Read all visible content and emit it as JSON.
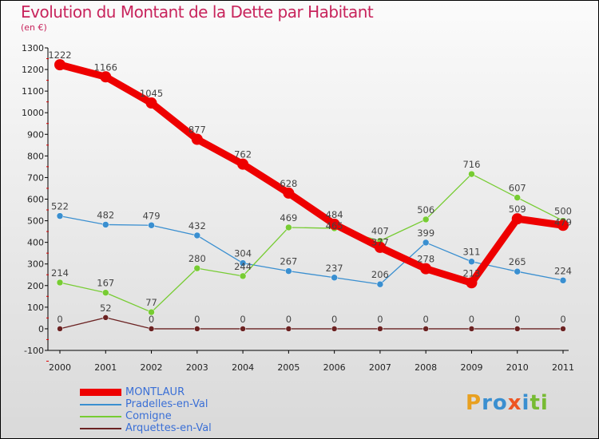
{
  "chart_data": {
    "type": "line",
    "title": "Evolution du Montant de la Dette par Habitant",
    "subtitle": "(en €)",
    "xlabel": "",
    "ylabel": "",
    "x": [
      "2000",
      "2001",
      "2002",
      "2003",
      "2004",
      "2005",
      "2006",
      "2007",
      "2008",
      "2009",
      "2010",
      "2011"
    ],
    "ylim": [
      -100,
      1300
    ],
    "yticks": [
      -100,
      0,
      100,
      200,
      300,
      400,
      500,
      600,
      700,
      800,
      900,
      1000,
      1100,
      1200,
      1300
    ],
    "grid": false,
    "legend_position": "bottom-left",
    "series": [
      {
        "name": "MONTLAUR",
        "color": "#ee0000",
        "values": [
          1222,
          1166,
          1045,
          877,
          762,
          628,
          484,
          377,
          278,
          213,
          509,
          479
        ]
      },
      {
        "name": "Pradelles-en-Val",
        "color": "#3a8fd0",
        "values": [
          522,
          482,
          479,
          432,
          304,
          267,
          237,
          206,
          399,
          311,
          265,
          224
        ]
      },
      {
        "name": "Comigne",
        "color": "#77cc33",
        "values": [
          214,
          167,
          77,
          280,
          244,
          469,
          465,
          407,
          506,
          716,
          607,
          500
        ]
      },
      {
        "name": "Arquettes-en-Val",
        "color": "#6b2222",
        "values": [
          0,
          52,
          0,
          0,
          0,
          0,
          0,
          0,
          0,
          0,
          0,
          0
        ]
      }
    ]
  },
  "logo": {
    "text": "Proxiti"
  }
}
